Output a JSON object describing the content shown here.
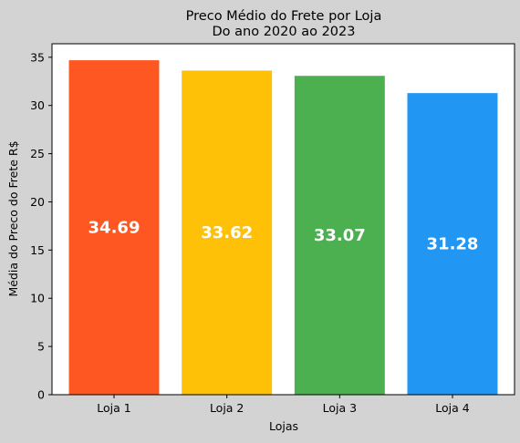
{
  "chart_data": {
    "type": "bar",
    "title": "Preco Médio do Frete por Loja",
    "subtitle": "Do ano 2020 ao 2023",
    "xlabel": "Lojas",
    "ylabel": "Média do Preco do Frete R$",
    "categories": [
      "Loja 1",
      "Loja 2",
      "Loja 3",
      "Loja 4"
    ],
    "values": [
      34.69,
      33.62,
      33.07,
      31.28
    ],
    "data_labels": [
      "34.69",
      "33.62",
      "33.07",
      "31.28"
    ],
    "colors": [
      "#FF5722",
      "#FFC107",
      "#4CAF50",
      "#2196F3"
    ],
    "ylim": [
      0,
      36.4
    ],
    "yticks": [
      0,
      5,
      10,
      15,
      20,
      25,
      30,
      35
    ],
    "grid": false,
    "legend": "none"
  },
  "style": {
    "figure_background": "#d3d3d3",
    "plot_background": "#ffffff"
  }
}
